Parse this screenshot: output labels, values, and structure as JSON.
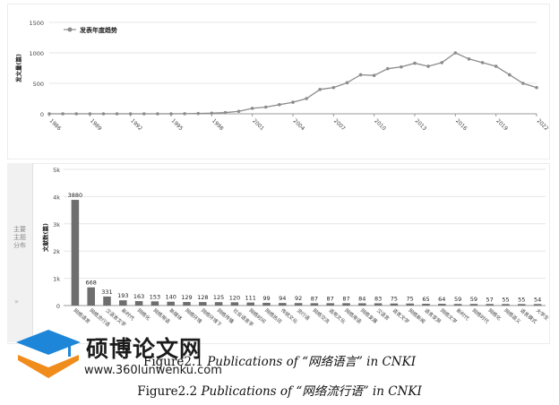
{
  "chart_data": [
    {
      "type": "line",
      "title": "",
      "legend": "发表年度趋势",
      "legend_position": "top-left",
      "ylabel": "发文量(篇)",
      "xlabel": "",
      "ylim": [
        0,
        1500
      ],
      "yticks": [
        "0",
        "500",
        "1000",
        "1500"
      ],
      "xticks": [
        "1986",
        "1989",
        "1992",
        "1995",
        "1998",
        "2001",
        "2004",
        "2007",
        "2010",
        "2013",
        "2016",
        "2019",
        "2022"
      ],
      "grid": true,
      "x": [
        1986,
        1987,
        1988,
        1989,
        1990,
        1991,
        1992,
        1993,
        1994,
        1995,
        1996,
        1997,
        1998,
        1999,
        2000,
        2001,
        2002,
        2003,
        2004,
        2005,
        2006,
        2007,
        2008,
        2009,
        2010,
        2011,
        2012,
        2013,
        2014,
        2015,
        2016,
        2017,
        2018,
        2019,
        2020,
        2021,
        2022
      ],
      "values": [
        0,
        0,
        0,
        0,
        0,
        0,
        0,
        0,
        0,
        0,
        2,
        5,
        10,
        20,
        40,
        90,
        110,
        150,
        190,
        250,
        400,
        430,
        510,
        640,
        630,
        740,
        770,
        830,
        780,
        840,
        1000,
        900,
        840,
        780,
        640,
        500,
        430
      ]
    },
    {
      "type": "bar",
      "title": "",
      "ylabel": "文献数(篇)",
      "xlabel": "",
      "ylim": [
        0,
        5000
      ],
      "yticks": [
        "0",
        "1k",
        "2k",
        "3k",
        "4k",
        "5k"
      ],
      "grid": true,
      "categories": [
        "网络语言",
        "网络流行语",
        "汉语言文学",
        "新时代",
        "网络化",
        "网络用语",
        "新媒体",
        "网络环境",
        "网络环境下",
        "网络传播",
        "社会语言学",
        "网络时间",
        "网络热词",
        "传统文化",
        "流行语",
        "网络交流",
        "语用文化",
        "网络用语",
        "网络发展",
        "汉语言",
        "语言文学",
        "网络新闻",
        "语言变异",
        "网络文学",
        "新时代",
        "网络时代",
        "网络化",
        "网络语义",
        "语言模式",
        "大学生"
      ],
      "values": [
        3880,
        668,
        331,
        193,
        163,
        153,
        140,
        129,
        128,
        125,
        120,
        111,
        99,
        94,
        92,
        87,
        87,
        87,
        84,
        83,
        75,
        75,
        65,
        64,
        59,
        59,
        57,
        55,
        55,
        54
      ],
      "data_labels": [
        "3880",
        "668",
        "331",
        "193",
        "163",
        "153",
        "140",
        "129",
        "128",
        "125",
        "120",
        "111",
        "99",
        "94",
        "92",
        "87",
        "87",
        "87",
        "84",
        "83",
        "75",
        "75",
        "65",
        "64",
        "59",
        "59",
        "57",
        "55",
        "55",
        "54"
      ]
    }
  ],
  "side_tab": {
    "label": "主要主题分布"
  },
  "captions": [
    {
      "prefix": "Figure2.1 ",
      "italic": "Publications of ",
      "quoted": "“网络语言”",
      "suffix": " in CNKI"
    },
    {
      "prefix": "Figure2.2 ",
      "italic": "Publications of ",
      "quoted": "“网络流行语”",
      "suffix": " in CNKI"
    }
  ],
  "watermark": {
    "title": "硕博论文网",
    "url": "www.360lunwenku.com"
  },
  "colors": {
    "line": "#8c8c8c",
    "bar": "#6e6e6e",
    "grid": "#e6e6e6",
    "logo_blue": "#1e86d8",
    "logo_orange": "#f08c1c"
  }
}
